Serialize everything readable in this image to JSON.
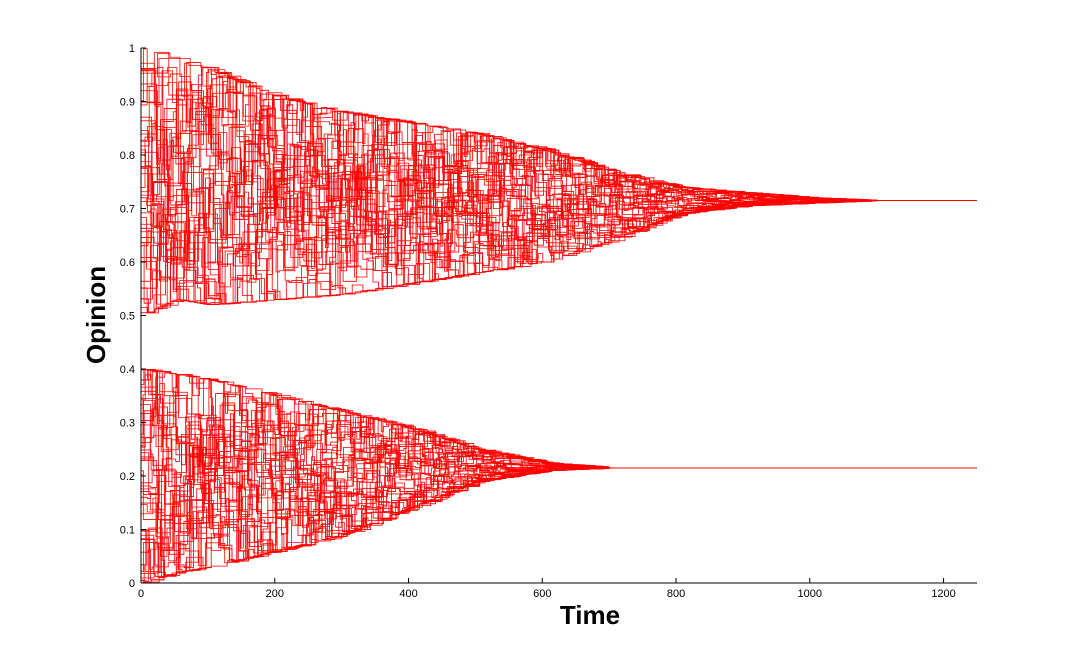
{
  "chart_data": {
    "type": "line",
    "title": "",
    "xlabel": "Time",
    "ylabel": "Opinion",
    "xlim": [
      0,
      1250
    ],
    "ylim": [
      0,
      1
    ],
    "xticks": [
      0,
      200,
      400,
      600,
      800,
      1000,
      1200
    ],
    "yticks": [
      0,
      0.1,
      0.2,
      0.3,
      0.4,
      0.5,
      0.6,
      0.7,
      0.8,
      0.9,
      1
    ],
    "ytick_labels": [
      "0",
      "0.1",
      "0.2",
      "0.3",
      "0.4",
      "0.5",
      "0.6",
      "0.7",
      "0.8",
      "0.9",
      "1"
    ],
    "grid": false,
    "line_color": "#ff0000",
    "clusters": [
      {
        "converged_value": 0.715,
        "convergence_time": 1100,
        "initial_range": [
          0.5,
          1.0
        ],
        "upper_envelope": [
          [
            0,
            1.0
          ],
          [
            100,
            0.96
          ],
          [
            200,
            0.91
          ],
          [
            300,
            0.88
          ],
          [
            400,
            0.86
          ],
          [
            500,
            0.84
          ],
          [
            600,
            0.81
          ],
          [
            700,
            0.77
          ],
          [
            800,
            0.74
          ],
          [
            900,
            0.73
          ],
          [
            1000,
            0.72
          ],
          [
            1100,
            0.715
          ],
          [
            1250,
            0.715
          ]
        ],
        "lower_envelope": [
          [
            0,
            0.5
          ],
          [
            50,
            0.53
          ],
          [
            100,
            0.52
          ],
          [
            200,
            0.53
          ],
          [
            300,
            0.54
          ],
          [
            400,
            0.56
          ],
          [
            500,
            0.58
          ],
          [
            600,
            0.6
          ],
          [
            700,
            0.64
          ],
          [
            800,
            0.69
          ],
          [
            900,
            0.705
          ],
          [
            1000,
            0.71
          ],
          [
            1100,
            0.715
          ],
          [
            1250,
            0.715
          ]
        ]
      },
      {
        "converged_value": 0.215,
        "convergence_time": 700,
        "initial_range": [
          0.0,
          0.4
        ],
        "upper_envelope": [
          [
            0,
            0.4
          ],
          [
            100,
            0.38
          ],
          [
            200,
            0.35
          ],
          [
            300,
            0.32
          ],
          [
            400,
            0.29
          ],
          [
            500,
            0.25
          ],
          [
            600,
            0.225
          ],
          [
            700,
            0.215
          ],
          [
            1250,
            0.215
          ]
        ],
        "lower_envelope": [
          [
            0,
            0.0
          ],
          [
            50,
            0.02
          ],
          [
            100,
            0.03
          ],
          [
            200,
            0.06
          ],
          [
            300,
            0.09
          ],
          [
            400,
            0.14
          ],
          [
            500,
            0.19
          ],
          [
            600,
            0.21
          ],
          [
            700,
            0.215
          ],
          [
            1250,
            0.215
          ]
        ]
      }
    ]
  }
}
